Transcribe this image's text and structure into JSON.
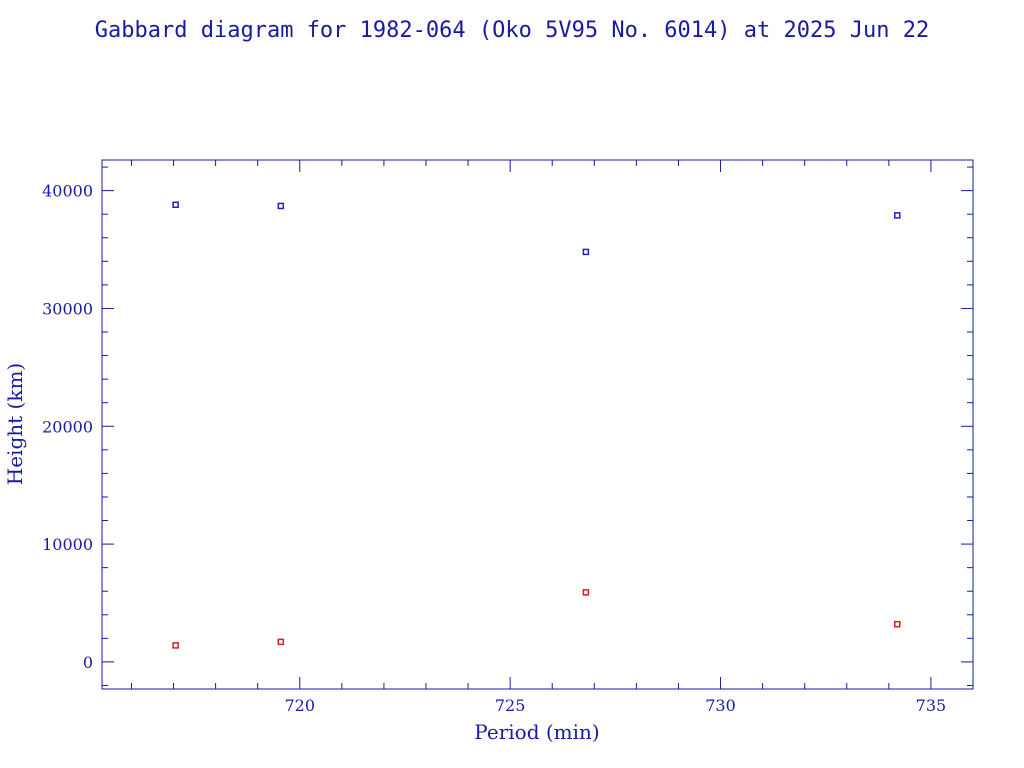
{
  "chart_data": {
    "type": "scatter",
    "title": "Gabbard diagram for 1982-064 (Oko 5V95 No. 6014) at 2025 Jun 22",
    "xlabel": "Period (min)",
    "ylabel": "Height (km)",
    "xlim": [
      715.3,
      736.0
    ],
    "ylim": [
      -2300,
      42600
    ],
    "x_major_ticks": [
      720,
      725,
      730,
      735
    ],
    "x_minor_step": 1,
    "y_major_ticks": [
      0,
      10000,
      20000,
      30000,
      40000
    ],
    "y_minor_step": 2000,
    "grid": false,
    "legend": "none",
    "colors": {
      "axes": "#1a1aa0",
      "apogee": "#2020c0",
      "perigee": "#d02020"
    },
    "series": [
      {
        "marker_color": "#2020c0",
        "points": [
          {
            "x": 717.05,
            "y": 38800
          },
          {
            "x": 719.55,
            "y": 38700
          },
          {
            "x": 726.8,
            "y": 34800
          },
          {
            "x": 734.2,
            "y": 37900
          }
        ]
      },
      {
        "marker_color": "#d02020",
        "points": [
          {
            "x": 717.05,
            "y": 1400
          },
          {
            "x": 719.55,
            "y": 1700
          },
          {
            "x": 726.8,
            "y": 5900
          },
          {
            "x": 734.2,
            "y": 3200
          }
        ]
      }
    ]
  }
}
